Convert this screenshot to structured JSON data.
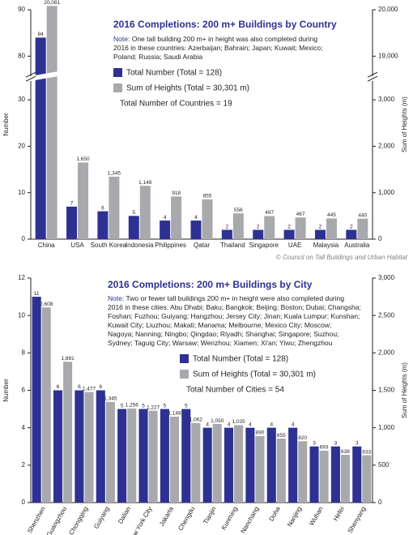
{
  "chart_data": [
    {
      "type": "bar",
      "title": "2016 Completions: 200 m+ Buildings by Country",
      "note_label": "Note:",
      "note": [
        "One tall building 200 m+ in height was also completed during",
        "2016 in these countries: Azerbaijan; Bahrain; Japan; Kuwait; Mexico;",
        "Poland; Russia; Saudi Arabia"
      ],
      "summary": "Total Number of Countries = 19",
      "ylabel": "Number",
      "y2label": "Sum of Heights (m)",
      "categories": [
        "China",
        "USA",
        "South Korea",
        "Indonesia",
        "Philippines",
        "Qatar",
        "Thailand",
        "Singapore",
        "UAE",
        "Malaysia",
        "Australia"
      ],
      "series": [
        {
          "name": "Total Number (Total = 128)",
          "color": "#2e3192",
          "values": [
            84,
            7,
            6,
            5,
            4,
            4,
            2,
            2,
            2,
            2,
            2
          ]
        },
        {
          "name": "Sum of Heights (Total = 30,301 m)",
          "color": "#a7a9ac",
          "axis": "y2",
          "values": [
            20081,
            1650,
            1345,
            1148,
            918,
            855,
            556,
            497,
            467,
            445,
            440
          ],
          "value_labels": [
            "20,081",
            "1,650",
            "1,345",
            "1,148",
            "918",
            "855",
            "556",
            "497",
            "467",
            "445",
            "440"
          ]
        }
      ],
      "ylim": [
        0,
        90
      ],
      "ybreak": [
        34,
        76
      ],
      "yticks": [
        0,
        10,
        20,
        30,
        80,
        90
      ],
      "y2lim": [
        0,
        20000
      ],
      "y2break": [
        3400,
        18600
      ],
      "y2ticks": [
        0,
        {
          "value": 1000,
          "label": "1,000"
        },
        {
          "value": 2000,
          "label": "2,000"
        },
        {
          "value": 3000,
          "label": "3,000"
        },
        {
          "value": 19000,
          "label": "19,000"
        },
        {
          "value": 20000,
          "label": "20,000"
        }
      ],
      "credit": "© Council on Tall Buildings and Urban Habitat"
    },
    {
      "type": "bar",
      "title": "2016 Completions: 200 m+ Buildings by City",
      "note_label": "Note:",
      "note": [
        "Two or fewer tall buildings 200 m+ in height were also completed during",
        "2016 in these cities: Abu Dhabi; Baku; Bangkok; Beijing; Boston; Dubai; Changsha;",
        "Foshan; Fuzhou; Guiyang; Hangzhou; Jersey City; Jinan; Kuala Lumpur; Kunshan;",
        "Kuwait City; Liuzhou; Makati; Manama; Melbourne; Mexico City; Moscow;",
        "Nagoya; Nanning; Ningbo; Qingdao; Riyadh; Shanghai; Singapore; Suzhou;",
        "Sydney; Taguig City; Warsaw; Wenzhou; Xiamen; Xi'an; Yiwu; Zhengzhou"
      ],
      "summary": "Total Number of Cities = 54",
      "ylabel": "Number",
      "y2label": "Sum of Heights (m)",
      "categories": [
        "Shenzhen",
        "Guangzhou",
        "Chongqing",
        "Guiyang",
        "Dalian",
        "New York City",
        "Jakarta",
        "Chengdu",
        "Tianjin",
        "Kunming",
        "Nanchang",
        "Doha",
        "Nanjing",
        "Wuhan",
        "Hefei",
        "Shenyang"
      ],
      "series": [
        {
          "name": "Total Number (Total = 128)",
          "color": "#2e3192",
          "values": [
            11,
            6,
            6,
            6,
            5,
            5,
            5,
            5,
            4,
            4,
            4,
            4,
            4,
            3,
            3,
            3
          ]
        },
        {
          "name": "Sum of Heights (Total = 30,301 m)",
          "color": "#a7a9ac",
          "axis": "y2",
          "values": [
            2608,
            1881,
            1477,
            1345,
            1256,
            1227,
            1148,
            1062,
            1050,
            1035,
            890,
            855,
            820,
            693,
            638,
            633
          ],
          "value_labels": [
            "2,608",
            "1,881",
            "1,477",
            "1,345",
            "1,256",
            "1,227",
            "1,148",
            "1,062",
            "1,050",
            "1,035",
            "890",
            "855",
            "820",
            "693",
            "638",
            "633"
          ]
        }
      ],
      "ylim": [
        0,
        12
      ],
      "yticks": [
        0,
        2,
        4,
        6,
        8,
        10,
        12
      ],
      "y2lim": [
        0,
        3000
      ],
      "y2ticks": [
        0,
        500,
        {
          "value": 1000,
          "label": "1,000"
        },
        {
          "value": 1500,
          "label": "1,500"
        },
        {
          "value": 2000,
          "label": "2,000"
        },
        {
          "value": 2500,
          "label": "2,500"
        },
        {
          "value": 3000,
          "label": "3,000"
        }
      ]
    }
  ]
}
